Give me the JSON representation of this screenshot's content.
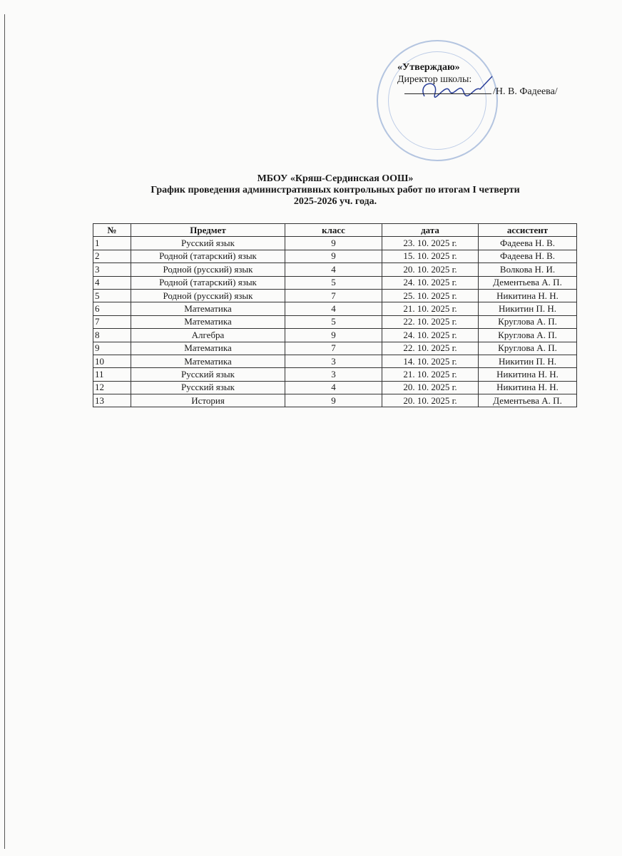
{
  "approval": {
    "title": "«Утверждаю»",
    "position": "Директор школы:",
    "name": "/Н. В. Фадеева/",
    "stamp_color": "#9db3d8",
    "signature_color": "#2a3f9a"
  },
  "header": {
    "org": "МБОУ «Кряш-Сердинская ООШ»",
    "title": "График проведения административных контрольных работ по итогам I четверти",
    "year": "2025-2026 уч. года."
  },
  "table": {
    "columns": [
      "№",
      "Предмет",
      "класс",
      "дата",
      "ассистент"
    ],
    "rows": [
      [
        "1",
        "Русский язык",
        "9",
        "23. 10. 2025 г.",
        "Фадеева Н. В."
      ],
      [
        "2",
        "Родной (татарский) язык",
        "9",
        "15. 10. 2025 г.",
        "Фадеева Н. В."
      ],
      [
        "3",
        "Родной (русский) язык",
        "4",
        "20. 10. 2025 г.",
        "Волкова Н. И."
      ],
      [
        "4",
        "Родной (татарский) язык",
        "5",
        "24. 10. 2025 г.",
        "Дементьева А. П."
      ],
      [
        "5",
        "Родной (русский) язык",
        "7",
        "25. 10. 2025 г.",
        "Никитина Н. Н."
      ],
      [
        "6",
        "Математика",
        "4",
        "21. 10. 2025 г.",
        "Никитин П. Н."
      ],
      [
        "7",
        "Математика",
        "5",
        "22. 10. 2025 г.",
        "Круглова А. П."
      ],
      [
        "8",
        "Алгебра",
        "9",
        "24. 10. 2025 г.",
        "Круглова А. П."
      ],
      [
        "9",
        "Математика",
        "7",
        "22. 10. 2025 г.",
        "Круглова А. П."
      ],
      [
        "10",
        "Математика",
        "3",
        "14. 10. 2025 г.",
        "Никитин П. Н."
      ],
      [
        "11",
        "Русский язык",
        "3",
        "21. 10. 2025 г.",
        "Никитина Н. Н."
      ],
      [
        "12",
        "Русский язык",
        "4",
        "20. 10. 2025 г.",
        "Никитина Н. Н."
      ],
      [
        "13",
        "История",
        "9",
        "20. 10. 2025 г.",
        "Дементьева А. П."
      ]
    ]
  }
}
